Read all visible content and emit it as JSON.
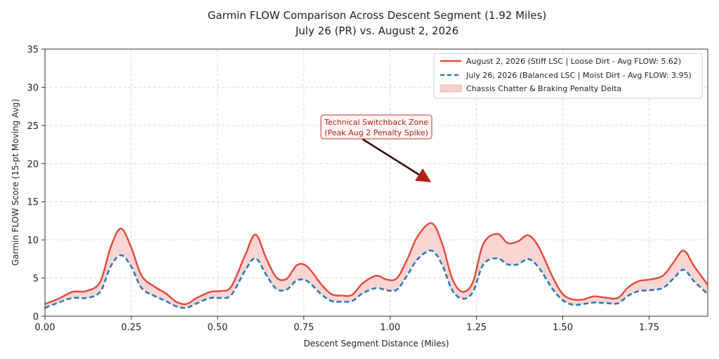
{
  "chart_data": {
    "type": "line",
    "title": "Garmin FLOW Comparison Across Descent Segment (1.92 Miles)",
    "subtitle": "July 26 (PR) vs. August 2, 2026",
    "xlabel": "Descent Segment Distance (Miles)",
    "ylabel": "Garmin FLOW Score (15-pt Moving Avg)",
    "xlim": [
      0,
      1.92
    ],
    "ylim": [
      0,
      35
    ],
    "xticks": [
      0,
      0.25,
      0.5,
      0.75,
      1.0,
      1.25,
      1.5,
      1.75
    ],
    "xtick_labels": [
      "0.00",
      "0.25",
      "0.50",
      "0.75",
      "1.00",
      "1.25",
      "1.50",
      "1.75"
    ],
    "yticks": [
      0,
      5,
      10,
      15,
      20,
      25,
      30,
      35
    ],
    "ytick_labels": [
      "0",
      "5",
      "10",
      "15",
      "20",
      "25",
      "30",
      "35"
    ],
    "grid": true,
    "legend_position": "top-right",
    "x": [
      0.0,
      0.04,
      0.08,
      0.12,
      0.16,
      0.19,
      0.22,
      0.25,
      0.28,
      0.32,
      0.35,
      0.38,
      0.41,
      0.44,
      0.48,
      0.51,
      0.54,
      0.58,
      0.61,
      0.64,
      0.67,
      0.7,
      0.73,
      0.76,
      0.8,
      0.83,
      0.86,
      0.89,
      0.92,
      0.96,
      0.99,
      1.02,
      1.05,
      1.08,
      1.12,
      1.15,
      1.18,
      1.21,
      1.24,
      1.27,
      1.31,
      1.34,
      1.37,
      1.4,
      1.43,
      1.47,
      1.5,
      1.53,
      1.56,
      1.59,
      1.63,
      1.66,
      1.69,
      1.72,
      1.75,
      1.79,
      1.82,
      1.85,
      1.88,
      1.92
    ],
    "series": [
      {
        "name": "August 2, 2026 (Stiff LSC | Loose Dirt - Avg FLOW: 5.62)",
        "style": "solid",
        "color": "#e5483a",
        "values": [
          1.6,
          2.3,
          3.2,
          3.3,
          4.5,
          9.0,
          11.5,
          9.0,
          5.3,
          3.8,
          3.0,
          1.9,
          1.6,
          2.4,
          3.2,
          3.3,
          3.9,
          8.0,
          10.7,
          7.7,
          5.1,
          4.9,
          6.7,
          6.5,
          4.2,
          2.9,
          2.7,
          2.8,
          4.3,
          5.3,
          4.8,
          5.0,
          7.5,
          10.5,
          12.2,
          9.6,
          4.9,
          3.2,
          4.5,
          9.5,
          10.8,
          9.6,
          9.8,
          10.6,
          9.1,
          5.2,
          2.9,
          2.2,
          2.2,
          2.6,
          2.4,
          2.4,
          3.8,
          4.6,
          4.8,
          5.3,
          7.0,
          8.6,
          6.6,
          4.1
        ]
      },
      {
        "name": "July 26, 2026 (Balanced LSC | Moist Dirt - Avg FLOW: 3.95)",
        "style": "dashed",
        "color": "#2a7ab9",
        "values": [
          1.1,
          1.8,
          2.4,
          2.4,
          3.2,
          6.5,
          8.0,
          6.5,
          3.7,
          2.6,
          2.0,
          1.3,
          1.1,
          1.7,
          2.4,
          2.4,
          2.8,
          6.0,
          7.6,
          5.5,
          3.6,
          3.5,
          4.7,
          4.6,
          2.9,
          2.0,
          1.9,
          2.0,
          3.0,
          3.7,
          3.4,
          3.5,
          5.4,
          7.5,
          8.6,
          6.8,
          3.4,
          2.3,
          3.2,
          6.8,
          7.6,
          6.8,
          6.8,
          7.5,
          6.4,
          3.6,
          2.1,
          1.5,
          1.6,
          1.8,
          1.7,
          1.7,
          2.7,
          3.3,
          3.4,
          3.7,
          4.9,
          6.1,
          4.6,
          2.9
        ]
      }
    ],
    "fill_between": {
      "name": "Chassis Chatter & Braking Penalty Delta",
      "color": "#f8cfcc"
    },
    "annotation": {
      "lines": [
        "Technical Switchback Zone",
        "(Peak Aug 2 Penalty Spike)"
      ],
      "text_x": 0.96,
      "text_y": 24.8,
      "arrow_from_x": 0.92,
      "arrow_from_y": 23.2,
      "arrow_to_x": 1.11,
      "arrow_to_y": 17.8
    }
  }
}
